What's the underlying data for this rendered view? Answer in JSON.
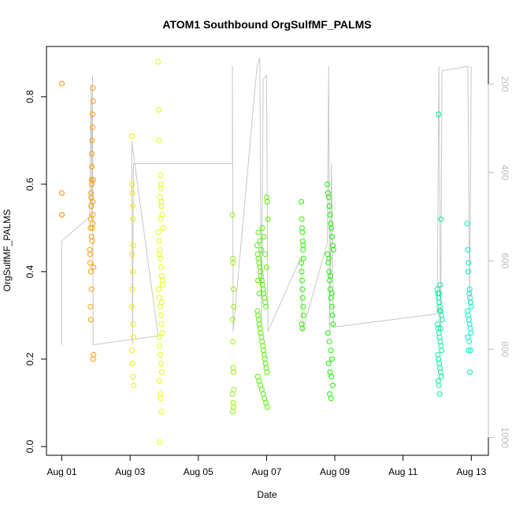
{
  "chart_data": {
    "type": "scatter",
    "title": "ATOM1 Southbound OrgSulfMF_PALMS",
    "xlabel": "Date",
    "ylabel": "OrgSulfMF_PALMS",
    "x_ticks": [
      "Aug 01",
      "Aug 03",
      "Aug 05",
      "Aug 07",
      "Aug 09",
      "Aug 11",
      "Aug 13"
    ],
    "x_tick_days": [
      1,
      3,
      5,
      7,
      9,
      11,
      13
    ],
    "xlim_days": [
      0.55,
      13.5
    ],
    "ylim": [
      -0.02,
      0.915
    ],
    "y_ticks": [
      0.0,
      0.2,
      0.4,
      0.6,
      0.8
    ],
    "y2_label_ticks": [
      200,
      400,
      600,
      800,
      1000
    ],
    "y2lim": [
      115,
      1040
    ],
    "y2_reversed": true,
    "grid": false,
    "legend": "none",
    "marker": "open-circle",
    "pressure_line_color": "#c8c8c8",
    "series": [
      {
        "color": "#ff8c00",
        "x": [
          1.0,
          1.0,
          1.0,
          1.0
        ],
        "y": [
          0.83,
          0.58,
          0.53,
          0.53
        ]
      },
      {
        "color": "#ff9a00",
        "x": [
          1.82,
          1.83,
          1.84,
          1.85,
          1.86,
          1.86,
          1.87,
          1.88,
          1.88,
          1.89,
          1.9,
          1.9,
          1.91,
          1.92,
          1.92,
          1.93,
          1.84,
          1.85,
          1.87,
          1.89,
          1.9,
          1.91,
          1.86,
          1.88,
          1.93,
          1.92,
          1.87,
          1.85,
          1.83,
          1.89,
          1.91
        ],
        "y": [
          0.45,
          0.42,
          0.5,
          0.52,
          0.55,
          0.58,
          0.61,
          0.64,
          0.67,
          0.7,
          0.76,
          0.73,
          0.82,
          0.79,
          0.61,
          0.41,
          0.32,
          0.29,
          0.48,
          0.5,
          0.51,
          0.53,
          0.57,
          0.6,
          0.21,
          0.2,
          0.36,
          0.4,
          0.44,
          0.47,
          0.56
        ]
      },
      {
        "color": "#f4e800",
        "x": [
          3.05,
          3.06,
          3.07,
          3.08,
          3.09,
          3.1,
          3.06,
          3.08,
          3.07,
          3.05,
          3.09,
          3.1,
          3.06,
          3.07,
          3.08,
          3.1
        ],
        "y": [
          0.71,
          0.6,
          0.58,
          0.55,
          0.52,
          0.46,
          0.44,
          0.4,
          0.36,
          0.32,
          0.28,
          0.25,
          0.22,
          0.19,
          0.16,
          0.14
        ]
      },
      {
        "color": "#e6ff00",
        "x": [
          3.82,
          3.84,
          3.86,
          3.88,
          3.9,
          3.92,
          3.94,
          3.96,
          3.83,
          3.85,
          3.87,
          3.89,
          3.91,
          3.93,
          3.95,
          3.84,
          3.86,
          3.88,
          3.9,
          3.92,
          3.94,
          3.85,
          3.87,
          3.89,
          3.91,
          3.93,
          3.86,
          3.88,
          3.9,
          3.92,
          3.87,
          3.89,
          3.91,
          3.88,
          3.9,
          3.85,
          3.93,
          3.95
        ],
        "y": [
          0.88,
          0.77,
          0.7,
          0.62,
          0.6,
          0.56,
          0.53,
          0.5,
          0.49,
          0.47,
          0.45,
          0.43,
          0.41,
          0.39,
          0.37,
          0.36,
          0.34,
          0.32,
          0.3,
          0.28,
          0.26,
          0.25,
          0.23,
          0.21,
          0.19,
          0.17,
          0.15,
          0.12,
          0.11,
          0.08,
          0.01,
          0.52,
          0.55,
          0.57,
          0.59,
          0.44,
          0.33,
          0.38
        ]
      },
      {
        "color": "#99f000",
        "x": [
          6.0,
          6.01,
          6.02,
          6.03,
          6.04,
          6.0,
          6.01,
          6.02,
          6.03,
          6.04,
          6.0,
          6.02,
          6.03,
          6.01
        ],
        "y": [
          0.53,
          0.43,
          0.42,
          0.36,
          0.32,
          0.29,
          0.24,
          0.18,
          0.17,
          0.13,
          0.12,
          0.1,
          0.09,
          0.08
        ]
      },
      {
        "color": "#55f000",
        "x": [
          6.72,
          6.74,
          6.76,
          6.78,
          6.8,
          6.82,
          6.84,
          6.86,
          6.88,
          6.9,
          6.92,
          6.94,
          6.96,
          6.98,
          7.0,
          7.02,
          7.04,
          6.73,
          6.75,
          6.77,
          6.79,
          6.81,
          6.83,
          6.85,
          6.87,
          6.89,
          6.91,
          6.93,
          6.95,
          6.97,
          6.99,
          7.01,
          6.74,
          6.78,
          6.82,
          6.86,
          6.9,
          6.94,
          6.98,
          7.02,
          6.76,
          6.8,
          6.84,
          6.88,
          6.92,
          6.96,
          7.0,
          6.75,
          6.79
        ],
        "y": [
          0.46,
          0.44,
          0.43,
          0.42,
          0.41,
          0.4,
          0.39,
          0.38,
          0.37,
          0.36,
          0.35,
          0.34,
          0.33,
          0.32,
          0.57,
          0.56,
          0.52,
          0.31,
          0.3,
          0.29,
          0.28,
          0.27,
          0.26,
          0.25,
          0.24,
          0.23,
          0.22,
          0.21,
          0.2,
          0.19,
          0.18,
          0.17,
          0.16,
          0.15,
          0.14,
          0.13,
          0.12,
          0.11,
          0.1,
          0.09,
          0.49,
          0.47,
          0.45,
          0.5,
          0.48,
          0.44,
          0.41,
          0.38,
          0.35
        ]
      },
      {
        "color": "#30f000",
        "x": [
          8.02,
          8.03,
          8.04,
          8.05,
          8.06,
          8.07,
          8.08,
          8.02,
          8.03,
          8.04,
          8.05,
          8.06,
          8.07,
          8.08,
          8.03,
          8.05,
          8.07
        ],
        "y": [
          0.56,
          0.52,
          0.5,
          0.49,
          0.47,
          0.45,
          0.43,
          0.42,
          0.4,
          0.38,
          0.36,
          0.34,
          0.32,
          0.3,
          0.28,
          0.27,
          0.46
        ]
      },
      {
        "color": "#18f000",
        "x": [
          8.78,
          8.8,
          8.82,
          8.84,
          8.86,
          8.88,
          8.9,
          8.92,
          8.94,
          8.96,
          8.79,
          8.81,
          8.83,
          8.85,
          8.87,
          8.89,
          8.91,
          8.93,
          8.95,
          8.8,
          8.84,
          8.88,
          8.92,
          8.82,
          8.86,
          8.9,
          8.94,
          8.85,
          8.89,
          8.83,
          8.87,
          8.91
        ],
        "y": [
          0.6,
          0.58,
          0.57,
          0.55,
          0.53,
          0.51,
          0.5,
          0.48,
          0.46,
          0.45,
          0.44,
          0.42,
          0.4,
          0.38,
          0.36,
          0.34,
          0.32,
          0.3,
          0.28,
          0.26,
          0.24,
          0.22,
          0.2,
          0.19,
          0.17,
          0.16,
          0.14,
          0.12,
          0.11,
          0.43,
          0.39,
          0.35
        ]
      },
      {
        "color": "#00f0a0",
        "x": [
          12.0,
          12.02,
          12.04,
          12.06,
          12.08,
          12.1,
          12.12,
          12.14,
          12.01,
          12.03,
          12.05,
          12.07,
          12.09,
          12.11,
          12.13,
          12.02,
          12.04,
          12.06,
          12.08,
          12.1,
          12.12,
          12.03,
          12.05,
          12.07,
          12.09,
          12.11,
          12.04,
          12.06,
          12.08,
          12.1
        ],
        "y": [
          0.36,
          0.35,
          0.34,
          0.33,
          0.32,
          0.31,
          0.3,
          0.29,
          0.28,
          0.27,
          0.26,
          0.25,
          0.24,
          0.23,
          0.22,
          0.21,
          0.2,
          0.19,
          0.18,
          0.17,
          0.16,
          0.15,
          0.14,
          0.12,
          0.37,
          0.52,
          0.76,
          0.35,
          0.31,
          0.27
        ]
      },
      {
        "color": "#00f0c8",
        "x": [
          12.88,
          12.9,
          12.92,
          12.94,
          12.96,
          12.98,
          13.0,
          12.89,
          12.91,
          12.93,
          12.95,
          12.97,
          12.99,
          12.9,
          12.94,
          12.98,
          12.92,
          12.96,
          12.91,
          12.95
        ],
        "y": [
          0.51,
          0.45,
          0.42,
          0.35,
          0.34,
          0.33,
          0.32,
          0.31,
          0.3,
          0.29,
          0.28,
          0.27,
          0.26,
          0.25,
          0.24,
          0.22,
          0.22,
          0.17,
          0.4,
          0.36
        ]
      }
    ],
    "pressure_line": {
      "x": [
        1.0,
        1.0,
        1.82,
        1.84,
        1.86,
        1.88,
        1.9,
        1.92,
        3.82,
        3.05,
        3.07,
        3.1,
        3.1,
        6.0,
        6.0,
        6.02,
        6.72,
        6.8,
        6.85,
        6.9,
        7.0,
        7.04,
        8.02,
        8.05,
        8.78,
        8.82,
        8.85,
        8.9,
        8.96,
        12.0,
        12.05,
        12.1,
        12.14,
        12.9,
        12.95,
        13.0
      ],
      "y": [
        790,
        555,
        500,
        340,
        200,
        510,
        180,
        790,
        770,
        330,
        790,
        380,
        380,
        380,
        160,
        760,
        160,
        140,
        750,
        190,
        180,
        760,
        590,
        760,
        560,
        160,
        760,
        380,
        750,
        720,
        160,
        760,
        170,
        160,
        700,
        160
      ]
    }
  }
}
